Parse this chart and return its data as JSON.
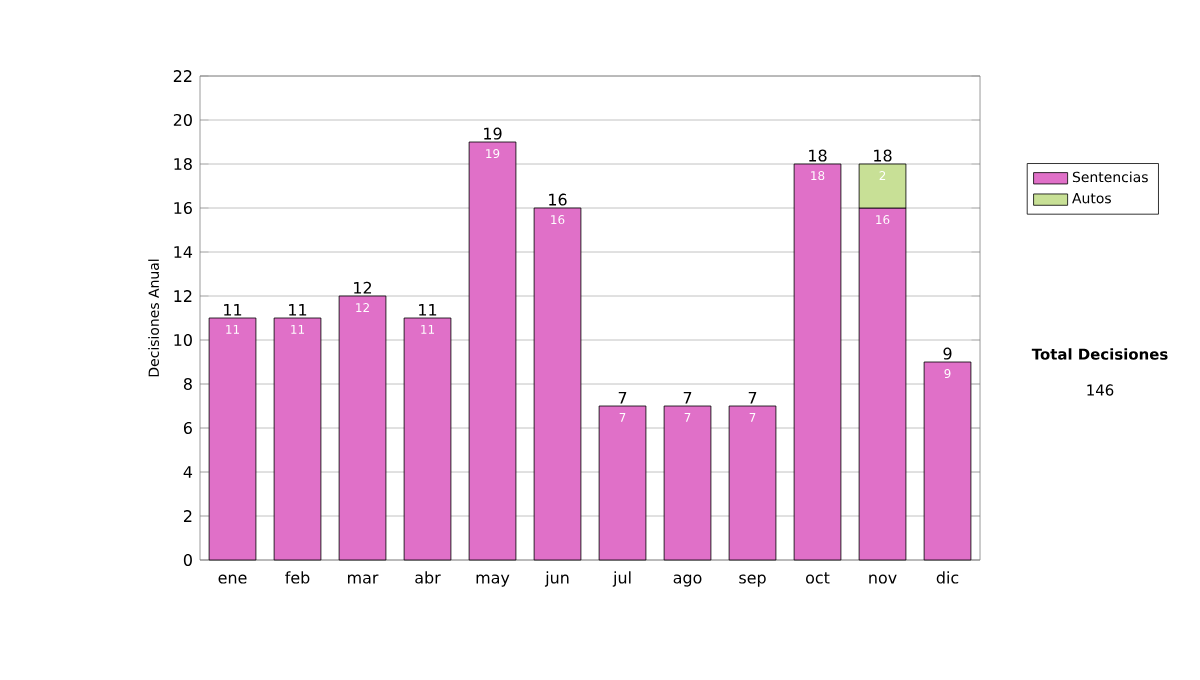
{
  "chart_data": {
    "type": "bar",
    "stacked": true,
    "ylabel": "Decisiones Anual",
    "categories": [
      "ene",
      "feb",
      "mar",
      "abr",
      "may",
      "jun",
      "jul",
      "ago",
      "sep",
      "oct",
      "nov",
      "dic"
    ],
    "series": [
      {
        "name": "Sentencias",
        "color": "#e070c8",
        "values": [
          11,
          11,
          12,
          11,
          19,
          16,
          7,
          7,
          7,
          18,
          16,
          9
        ]
      },
      {
        "name": "Autos",
        "color": "#c8e096",
        "values": [
          null,
          null,
          null,
          null,
          null,
          null,
          null,
          null,
          null,
          null,
          2,
          null
        ]
      }
    ],
    "data_labels": true,
    "totals": [
      "11",
      "11",
      "12",
      "11",
      "19",
      "16",
      "7",
      "7",
      "7",
      "18",
      "18",
      "9"
    ],
    "ylim": [
      0,
      22
    ],
    "yticks": [
      0,
      2,
      4,
      6,
      8,
      10,
      12,
      14,
      16,
      18,
      20,
      22
    ],
    "grid": "y",
    "legend": "right",
    "annotations": [
      "Total Decisiones",
      "146"
    ]
  }
}
